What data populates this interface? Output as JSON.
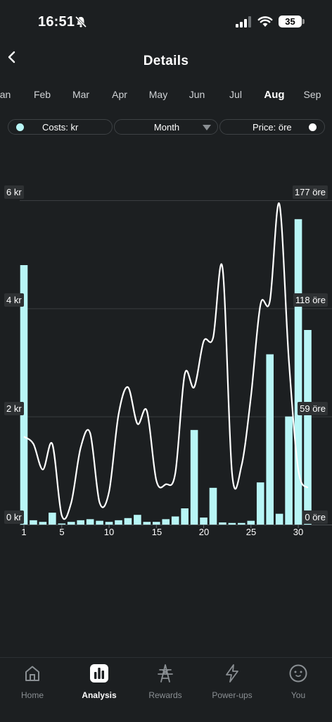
{
  "status_bar": {
    "time": "16:51",
    "battery": "35"
  },
  "header": {
    "title": "Details"
  },
  "months": [
    {
      "label": "Jan",
      "active": false
    },
    {
      "label": "Feb",
      "active": false
    },
    {
      "label": "Mar",
      "active": false
    },
    {
      "label": "Apr",
      "active": false
    },
    {
      "label": "May",
      "active": false
    },
    {
      "label": "Jun",
      "active": false
    },
    {
      "label": "Jul",
      "active": false
    },
    {
      "label": "Aug",
      "active": true
    },
    {
      "label": "Sep",
      "active": false
    }
  ],
  "filters": {
    "costs": "Costs: kr",
    "period": "Month",
    "price": "Price: öre"
  },
  "chart_data": {
    "type": "bar+line",
    "x_ticks": [
      "1",
      "5",
      "10",
      "15",
      "20",
      "25",
      "30"
    ],
    "y_left_ticks": [
      "0 kr",
      "2 kr",
      "4 kr",
      "6 kr"
    ],
    "y_left_values": [
      0,
      2,
      4,
      6
    ],
    "y_right_ticks": [
      "0 öre",
      "59 öre",
      "118 öre",
      "177 öre"
    ],
    "y_right_values": [
      0,
      59,
      118,
      177
    ],
    "grid": true,
    "colors": {
      "bars": "#b8f6f6",
      "line": "#ffffff",
      "grid": "#3a3d40"
    },
    "series": [
      {
        "type": "bar",
        "axis": "left",
        "days": [
          1,
          2,
          3,
          4,
          5,
          6,
          7,
          8,
          9,
          10,
          11,
          12,
          13,
          14,
          15,
          16,
          17,
          18,
          19,
          20,
          21,
          22,
          23,
          24,
          25,
          26,
          27,
          28,
          29,
          30,
          31
        ],
        "values": [
          4.8,
          0.08,
          0.05,
          0.22,
          0.02,
          0.05,
          0.08,
          0.1,
          0.07,
          0.05,
          0.08,
          0.12,
          0.18,
          0.05,
          0.05,
          0.1,
          0.15,
          0.3,
          1.75,
          0.13,
          0.68,
          0.04,
          0.03,
          0.03,
          0.07,
          0.78,
          3.15,
          0.2,
          2.0,
          5.65,
          3.6
        ]
      },
      {
        "type": "line",
        "axis": "right",
        "days": [
          1,
          2,
          3,
          4,
          5,
          6,
          7,
          8,
          9,
          10,
          11,
          12,
          13,
          14,
          15,
          16,
          17,
          18,
          19,
          20,
          21,
          22,
          23,
          24,
          25,
          26,
          27,
          28,
          29,
          30,
          31
        ],
        "values": [
          48,
          44,
          30,
          44,
          5,
          12,
          42,
          50,
          12,
          18,
          60,
          75,
          55,
          62,
          24,
          22,
          28,
          82,
          75,
          100,
          102,
          140,
          28,
          32,
          70,
          120,
          122,
          175,
          90,
          30,
          20
        ]
      }
    ]
  },
  "bottom_nav": [
    {
      "label": "Home",
      "icon": "home-icon",
      "active": false
    },
    {
      "label": "Analysis",
      "icon": "analysis-icon",
      "active": true
    },
    {
      "label": "Rewards",
      "icon": "rewards-icon",
      "active": false
    },
    {
      "label": "Power-ups",
      "icon": "power-ups-icon",
      "active": false
    },
    {
      "label": "You",
      "icon": "you-icon",
      "active": false
    }
  ]
}
